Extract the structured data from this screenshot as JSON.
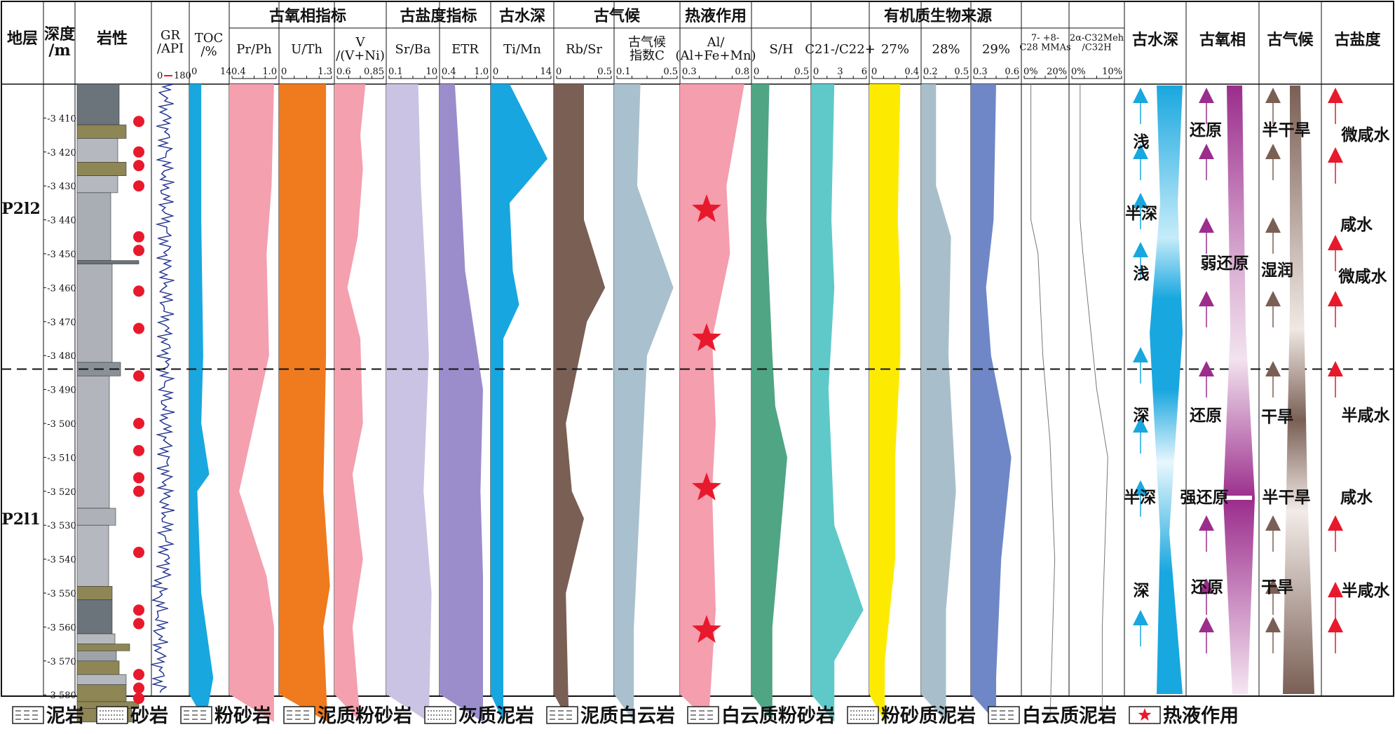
{
  "columns": {
    "stratum": "地层",
    "depth": "深度\n/m",
    "lithology": "岩性",
    "gr": "GR\n/API",
    "gr_range": [
      "0",
      "180"
    ],
    "toc": "TOC\n/%",
    "toc_range": [
      "0",
      "14"
    ]
  },
  "groups": [
    {
      "title": "古氧相指标"
    },
    {
      "title": "古盐度指标"
    },
    {
      "title": "古水深"
    },
    {
      "title": "古气候"
    },
    {
      "title": "热液作用"
    },
    {
      "title": "有机质生物来源"
    }
  ],
  "tracks": [
    {
      "label": "Pr/Ph",
      "min": "0.4",
      "max": "1.0",
      "color": "#F4A0AE"
    },
    {
      "label": "U/Th",
      "min": "0",
      "max": "1.3",
      "color": "#F07A1E"
    },
    {
      "label": "V\n/(V+Ni)",
      "min": "0.6",
      "max": "0.85",
      "color": "#F4A0AE"
    },
    {
      "label": "Sr/Ba",
      "min": "0.1",
      "max": "10",
      "color": "#CBC3E3"
    },
    {
      "label": "ETR",
      "min": "0.4",
      "max": "1.0",
      "color": "#9B8DCB"
    },
    {
      "label": "Ti/Mn",
      "min": "0",
      "max": "14",
      "color": "#17A6DF"
    },
    {
      "label": "Rb/Sr",
      "min": "0",
      "max": "0.5",
      "color": "#7A5F55"
    },
    {
      "label": "古气候\n指数C",
      "min": "0.1",
      "max": "0.5",
      "color": "#A9C0CE"
    },
    {
      "label": "Al/\n(Al+Fe+Mn)",
      "min": "0.3",
      "max": "0.8",
      "color": "#F49EAE"
    },
    {
      "label": "S/H",
      "min": "0",
      "max": "0.5",
      "color": "#50A584"
    },
    {
      "label": "C21-/C22+",
      "min": "0",
      "max": "6",
      "mid": "3",
      "color": "#5FC9CA"
    },
    {
      "label": "27%",
      "min": "0",
      "max": "0.4",
      "color": "#FCEB00"
    },
    {
      "label": "28%",
      "min": "0.2",
      "max": "0.5",
      "color": "#A8BFCB"
    },
    {
      "label": "29%",
      "min": "0.3",
      "max": "0.6",
      "color": "#6F87C7"
    },
    {
      "label": "7- +8-\nC28 MMAs",
      "min": "0%",
      "max": "20%",
      "color": "#888888"
    },
    {
      "label": "2α-C32Meh\n/C32H",
      "min": "0%",
      "max": "10%",
      "color": "#888888"
    }
  ],
  "interp_headers": [
    "古水深",
    "古氧相",
    "古气候",
    "古盐度"
  ],
  "depth_ticks": [
    "-3 410",
    "-3 420",
    "-3 430",
    "-3 440",
    "-3 450",
    "-3 460",
    "-3 470",
    "-3 480",
    "-3 490",
    "-3 500",
    "-3 510",
    "-3 520",
    "-3 530",
    "-3 540",
    "-3 550",
    "-3 560",
    "-3 570",
    "-3 580"
  ],
  "strata": [
    {
      "label": "P2l2"
    },
    {
      "label": "P2l1"
    }
  ],
  "interp": {
    "water_depth": [
      "浅",
      "半深",
      "浅",
      "深",
      "半深",
      "深"
    ],
    "redox": [
      "还原",
      "弱还原",
      "还原",
      "强还原",
      "还原"
    ],
    "climate": [
      "半干旱",
      "湿润",
      "干旱",
      "半干旱",
      "干旱"
    ],
    "salinity": [
      "微咸水",
      "咸水",
      "微咸水",
      "半咸水",
      "咸水",
      "半咸水"
    ]
  },
  "legend": [
    "泥岩",
    "砂岩",
    "粉砂岩",
    "泥质粉砂岩",
    "灰质泥岩",
    "泥质白云岩",
    "白云质粉砂岩",
    "粉砂质泥岩",
    "白云质泥岩",
    "热液作用"
  ],
  "colors": {
    "water_arrow": "#19A7DF",
    "redox_arrow": "#9B2D8C",
    "climate_arrow": "#7A5F55",
    "salinity_arrow": "#E8192C",
    "star": "#E8192C",
    "dot": "#E8192C"
  }
}
